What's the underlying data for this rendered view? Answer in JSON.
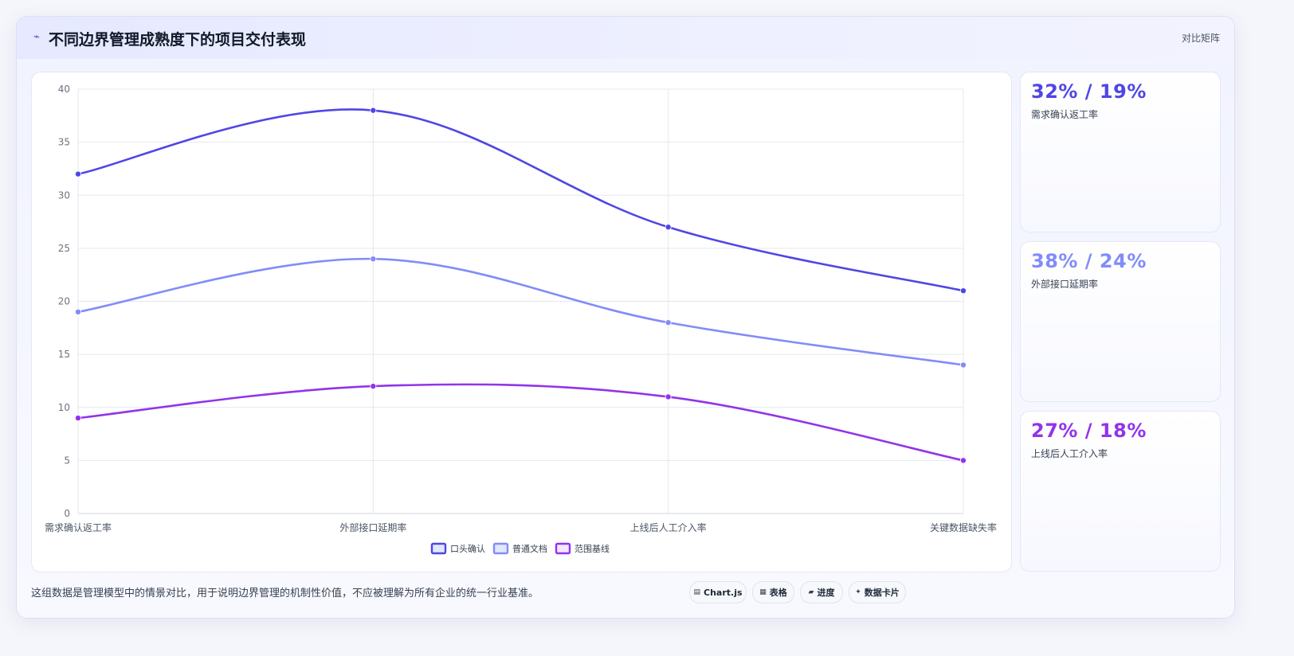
{
  "header": {
    "title_icon": "⌁",
    "title": "不同边界管理成熟度下的项目交付表现",
    "tag": "对比矩阵"
  },
  "stats": [
    {
      "value": "32% / 19%",
      "label": "需求确认返工率",
      "color": "#4f46e5"
    },
    {
      "value": "38% / 24%",
      "label": "外部接口延期率",
      "color": "#818cf8"
    },
    {
      "value": "27% / 18%",
      "label": "上线后人工介入率",
      "color": "#9333ea"
    }
  ],
  "footer": {
    "note": "这组数据是管理模型中的情景对比，用于说明边界管理的机制性价值，不应被理解为所有企业的统一行业基准。",
    "buttons": [
      {
        "icon": "▤",
        "icon_name": "chart-icon",
        "label": "Chart.js"
      },
      {
        "icon": "▦",
        "icon_name": "table-icon",
        "label": "表格"
      },
      {
        "icon": "▰",
        "icon_name": "progress-icon",
        "label": "进度"
      },
      {
        "icon": "✦",
        "icon_name": "card-icon",
        "label": "数据卡片"
      }
    ]
  },
  "chart_data": {
    "type": "line",
    "categories": [
      "需求确认返工率",
      "外部接口延期率",
      "上线后人工介入率",
      "关键数据缺失率"
    ],
    "series": [
      {
        "name": "口头确认",
        "values": [
          32,
          38,
          27,
          21
        ],
        "color": "#4f46e5",
        "fill": "#e0e7ff"
      },
      {
        "name": "普通文档",
        "values": [
          19,
          24,
          18,
          14
        ],
        "color": "#818cf8",
        "fill": "#e0e7ff"
      },
      {
        "name": "范围基线",
        "values": [
          9,
          12,
          11,
          5
        ],
        "color": "#9333ea",
        "fill": "#f3e8ff"
      }
    ],
    "yticks": [
      0,
      5,
      10,
      15,
      20,
      25,
      30,
      35,
      40
    ],
    "ylim": [
      0,
      40
    ],
    "grid": true,
    "legend": "bottom-center"
  }
}
